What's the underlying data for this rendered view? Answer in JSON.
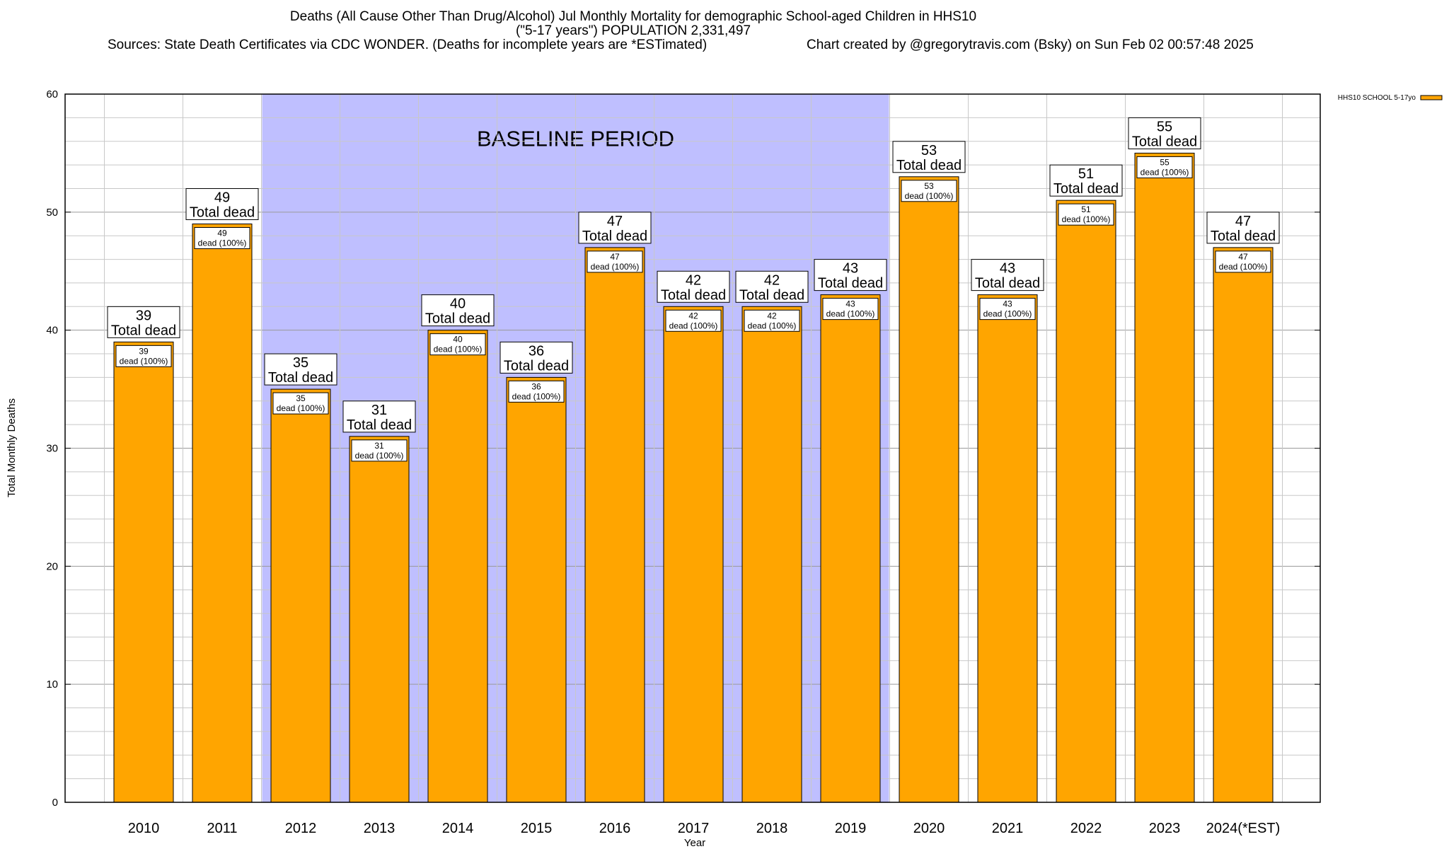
{
  "header": {
    "title_line1": "Deaths (All Cause Other Than Drug/Alcohol) Jul Monthly Mortality for demographic School-aged Children in HHS10",
    "title_line2": "(\"5-17 years\") POPULATION 2,331,497",
    "sources": "Sources: State Death Certificates via CDC WONDER. (Deaths for incomplete years are *ESTimated)",
    "credit": "Chart created by @gregorytravis.com (Bsky) on Sun Feb 02 00:57:48 2025"
  },
  "chart_data": {
    "type": "bar",
    "xlabel": "Year",
    "ylabel": "Total Monthly Deaths",
    "ylim": [
      0,
      60
    ],
    "yticks": [
      "0",
      "10",
      "20",
      "30",
      "40",
      "50",
      "60"
    ],
    "grid": true,
    "legend": {
      "placement": "top-right",
      "entries": [
        "HHS10 SCHOOL 5-17yo"
      ]
    },
    "categories": [
      "2010",
      "2011",
      "2012",
      "2013",
      "2014",
      "2015",
      "2016",
      "2017",
      "2018",
      "2019",
      "2020",
      "2021",
      "2022",
      "2023",
      "2024(*EST)"
    ],
    "series": [
      {
        "name": "HHS10 SCHOOL 5-17yo",
        "color": "#ffa500",
        "values": [
          39,
          49,
          35,
          31,
          40,
          36,
          47,
          42,
          42,
          43,
          53,
          43,
          51,
          55,
          47
        ]
      }
    ],
    "total_label": "Total dead",
    "inner_label": "dead (100%)",
    "baseline": {
      "label": "BASELINE PERIOD",
      "from": "2012",
      "to": "2019",
      "color": "#bfbfff"
    }
  }
}
